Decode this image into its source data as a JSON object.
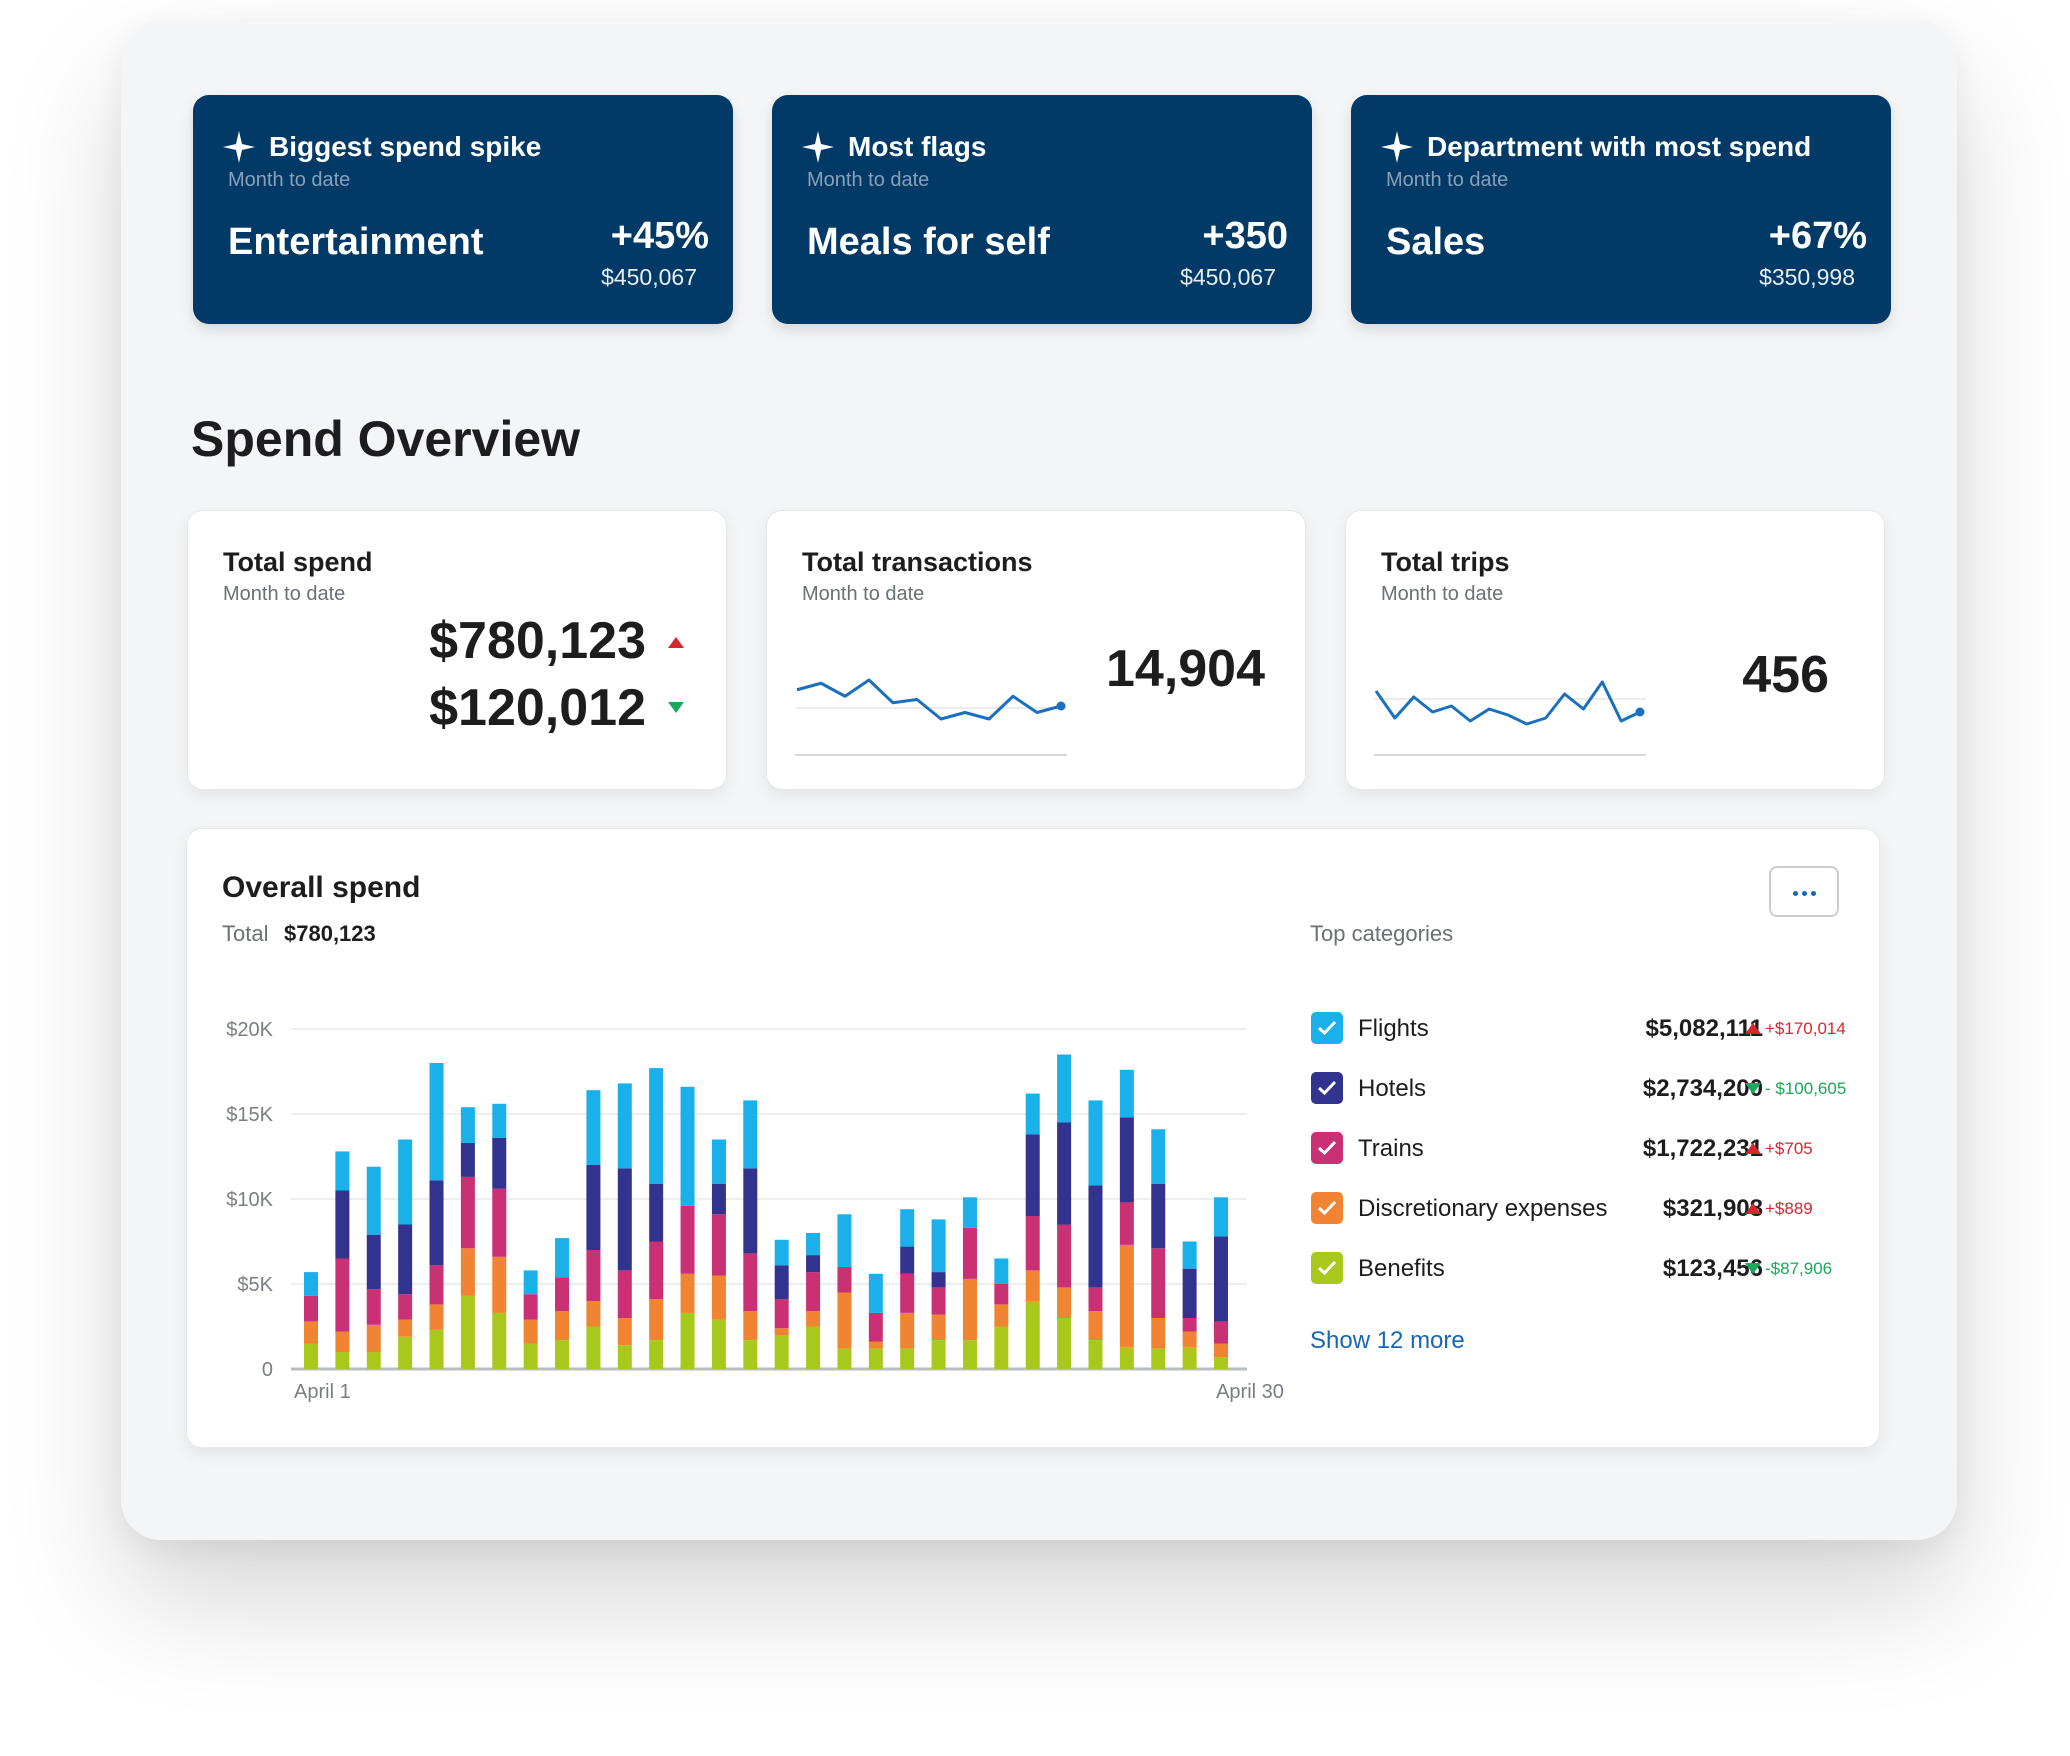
{
  "insights": [
    {
      "title": "Biggest spend spike",
      "subtitle": "Month to date",
      "value": "Entertainment",
      "delta": "+45%",
      "amount": "$450,067"
    },
    {
      "title": "Most flags",
      "subtitle": "Month to date",
      "value": "Meals for self",
      "delta": "+350",
      "amount": "$450,067"
    },
    {
      "title": "Department with most spend",
      "subtitle": "Month to date",
      "value": "Sales",
      "delta": "+67%",
      "amount": "$350,998"
    }
  ],
  "overview": {
    "title": "Spend Overview",
    "total_spend": {
      "title": "Total spend",
      "subtitle": "Month to date",
      "value_up": "$780,123",
      "value_down": "$120,012"
    },
    "total_transactions": {
      "title": "Total transactions",
      "subtitle": "Month to date",
      "value": "14,904",
      "sparkline": [
        5,
        7,
        3,
        8,
        1,
        2,
        -4,
        -2,
        -4,
        3,
        -2,
        0
      ]
    },
    "total_trips": {
      "title": "Total trips",
      "subtitle": "Month to date",
      "value": "456",
      "sparkline": [
        6,
        -3,
        4,
        -1,
        1,
        -4,
        0,
        -2,
        -5,
        -3,
        5,
        0,
        9,
        -4,
        -1
      ]
    }
  },
  "overall": {
    "title": "Overall spend",
    "total_label": "Total",
    "total_value": "$780,123",
    "menu_icon": "more-dots-icon",
    "top_categories_label": "Top categories",
    "categories": [
      {
        "name": "Flights",
        "value": "$5,082,111",
        "delta": "+$170,014",
        "trend": "up",
        "color": "#1ab0ea"
      },
      {
        "name": "Hotels",
        "value": "$2,734,200",
        "delta": "- $100,605",
        "trend": "down",
        "color": "#32338f"
      },
      {
        "name": "Trains",
        "value": "$1,722,231",
        "delta": "+$705",
        "trend": "up",
        "color": "#c93174"
      },
      {
        "name": "Discretionary expenses",
        "value": "$321,908",
        "delta": "+$889",
        "trend": "up",
        "color": "#f08433"
      },
      {
        "name": "Benefits",
        "value": "$123,456",
        "delta": "-$87,906",
        "trend": "down",
        "color": "#a8c81c"
      }
    ],
    "show_more": "Show 12 more",
    "colors": {
      "up": "#d8262f",
      "down": "#1aa85a",
      "link": "#1867b5",
      "brand": "#013a66"
    }
  },
  "chart_data": {
    "type": "bar",
    "stacked": true,
    "x_start_label": "April 1",
    "x_end_label": "April 30",
    "y_ticks": [
      "0",
      "$5K",
      "$10K",
      "$15K",
      "$20K"
    ],
    "ylim": [
      0,
      20000
    ],
    "grid": true,
    "series": [
      {
        "name": "Benefits",
        "color": "#a8c81c",
        "values": [
          1500,
          1000,
          1000,
          1900,
          2300,
          4300,
          3300,
          1500,
          1700,
          2500,
          1400,
          1700,
          3300,
          2900,
          1700,
          2000,
          2500,
          1200,
          1200,
          1200,
          1700,
          1700,
          2500,
          4000,
          3000,
          1700,
          1300,
          1200,
          1300,
          700
        ]
      },
      {
        "name": "Discretionary expenses",
        "color": "#f08433",
        "values": [
          1300,
          1200,
          1600,
          1000,
          1500,
          2800,
          3300,
          1400,
          1700,
          1500,
          1600,
          2400,
          2300,
          2600,
          1700,
          400,
          900,
          3300,
          400,
          2100,
          1500,
          3600,
          1300,
          1800,
          1800,
          1700,
          6000,
          1800,
          900,
          800
        ]
      },
      {
        "name": "Trains",
        "color": "#c93174",
        "values": [
          1500,
          4300,
          2100,
          1500,
          2300,
          4200,
          4000,
          1500,
          2000,
          3000,
          2800,
          3400,
          4000,
          3600,
          3400,
          1700,
          2300,
          1500,
          1700,
          2300,
          1600,
          3000,
          1200,
          3200,
          3700,
          1400,
          2500,
          4100,
          800,
          1300
        ]
      },
      {
        "name": "Hotels",
        "color": "#32338f",
        "values": [
          0,
          4000,
          3200,
          4100,
          5000,
          2000,
          3000,
          0,
          0,
          5000,
          6000,
          3400,
          0,
          1800,
          5000,
          2000,
          1000,
          0,
          0,
          1600,
          900,
          0,
          0,
          4800,
          6000,
          6000,
          5000,
          3800,
          2900,
          5000
        ]
      },
      {
        "name": "Flights",
        "color": "#1ab0ea",
        "values": [
          1400,
          2300,
          4000,
          5000,
          6900,
          2100,
          2000,
          1400,
          2300,
          4400,
          5000,
          6800,
          7000,
          2600,
          4000,
          1500,
          1300,
          3100,
          2300,
          2200,
          3100,
          1800,
          1500,
          2400,
          4000,
          5000,
          2800,
          3200,
          1600,
          2300
        ]
      }
    ]
  }
}
